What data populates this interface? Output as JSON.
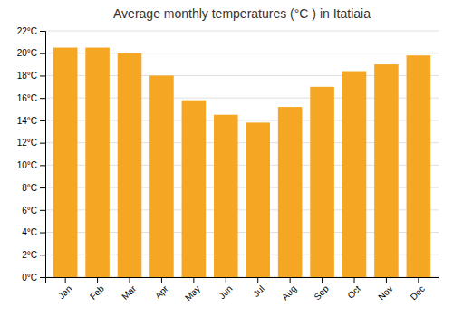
{
  "chart_data": {
    "type": "bar",
    "title": "Average monthly temperatures (°C ) in Itatiaia",
    "categories": [
      "Jan",
      "Feb",
      "Mar",
      "Apr",
      "May",
      "Jun",
      "Jul",
      "Aug",
      "Sep",
      "Oct",
      "Nov",
      "Dec"
    ],
    "values": [
      20.5,
      20.5,
      20.0,
      18.0,
      15.8,
      14.5,
      13.8,
      15.2,
      17.0,
      18.4,
      19.0,
      19.8
    ],
    "color": "#F5A623",
    "ylim": [
      0,
      22
    ],
    "yticks": [
      {
        "value": 0,
        "label": "0°C"
      },
      {
        "value": 2,
        "label": "2°C"
      },
      {
        "value": 4,
        "label": "4°C"
      },
      {
        "value": 6,
        "label": "6°C"
      },
      {
        "value": 8,
        "label": "8°C"
      },
      {
        "value": 10,
        "label": "10°C"
      },
      {
        "value": 12,
        "label": "12°C"
      },
      {
        "value": 14,
        "label": "14°C"
      },
      {
        "value": 16,
        "label": "16°C"
      },
      {
        "value": 18,
        "label": "18°C"
      },
      {
        "value": 20,
        "label": "20°C"
      },
      {
        "value": 22,
        "label": "22°C"
      }
    ],
    "grid": true
  }
}
